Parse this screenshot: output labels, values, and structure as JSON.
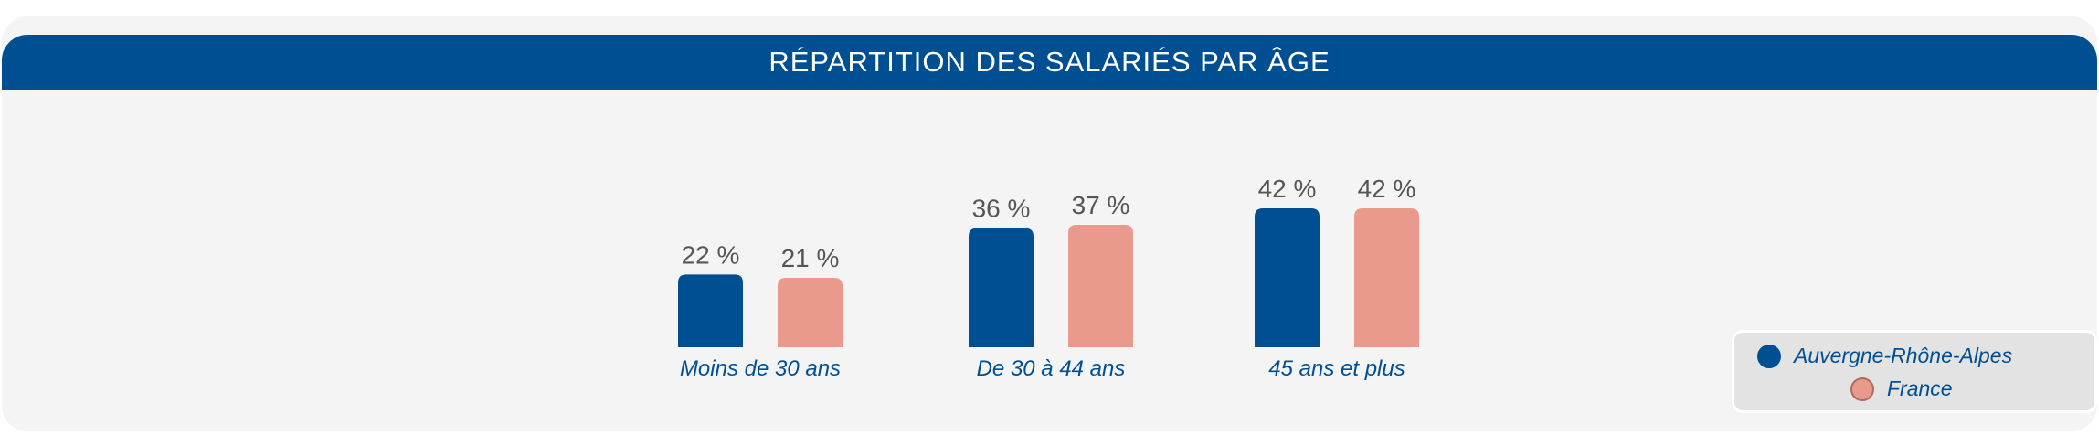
{
  "colors": {
    "header": "#004f93",
    "series1": "#004f93",
    "series2": "#e99a8c",
    "value_text": "#555555",
    "category_text": "#004f93",
    "legend_text": "#004f93"
  },
  "chart_data": {
    "type": "bar",
    "title": "RÉPARTITION DES SALARIÉS PAR ÂGE",
    "categories": [
      "Moins de 30 ans",
      "De 30 à 44 ans",
      "45 ans et plus"
    ],
    "series": [
      {
        "name": "Auvergne-Rhône-Alpes",
        "values": [
          22,
          36,
          42
        ],
        "labels": [
          "22 %",
          "36 %",
          "42 %"
        ]
      },
      {
        "name": "France",
        "values": [
          21,
          37,
          42
        ],
        "labels": [
          "21 %",
          "37 %",
          "42 %"
        ]
      }
    ],
    "ylim": [
      0,
      100
    ],
    "grid": false,
    "legend": "bottom-right"
  }
}
